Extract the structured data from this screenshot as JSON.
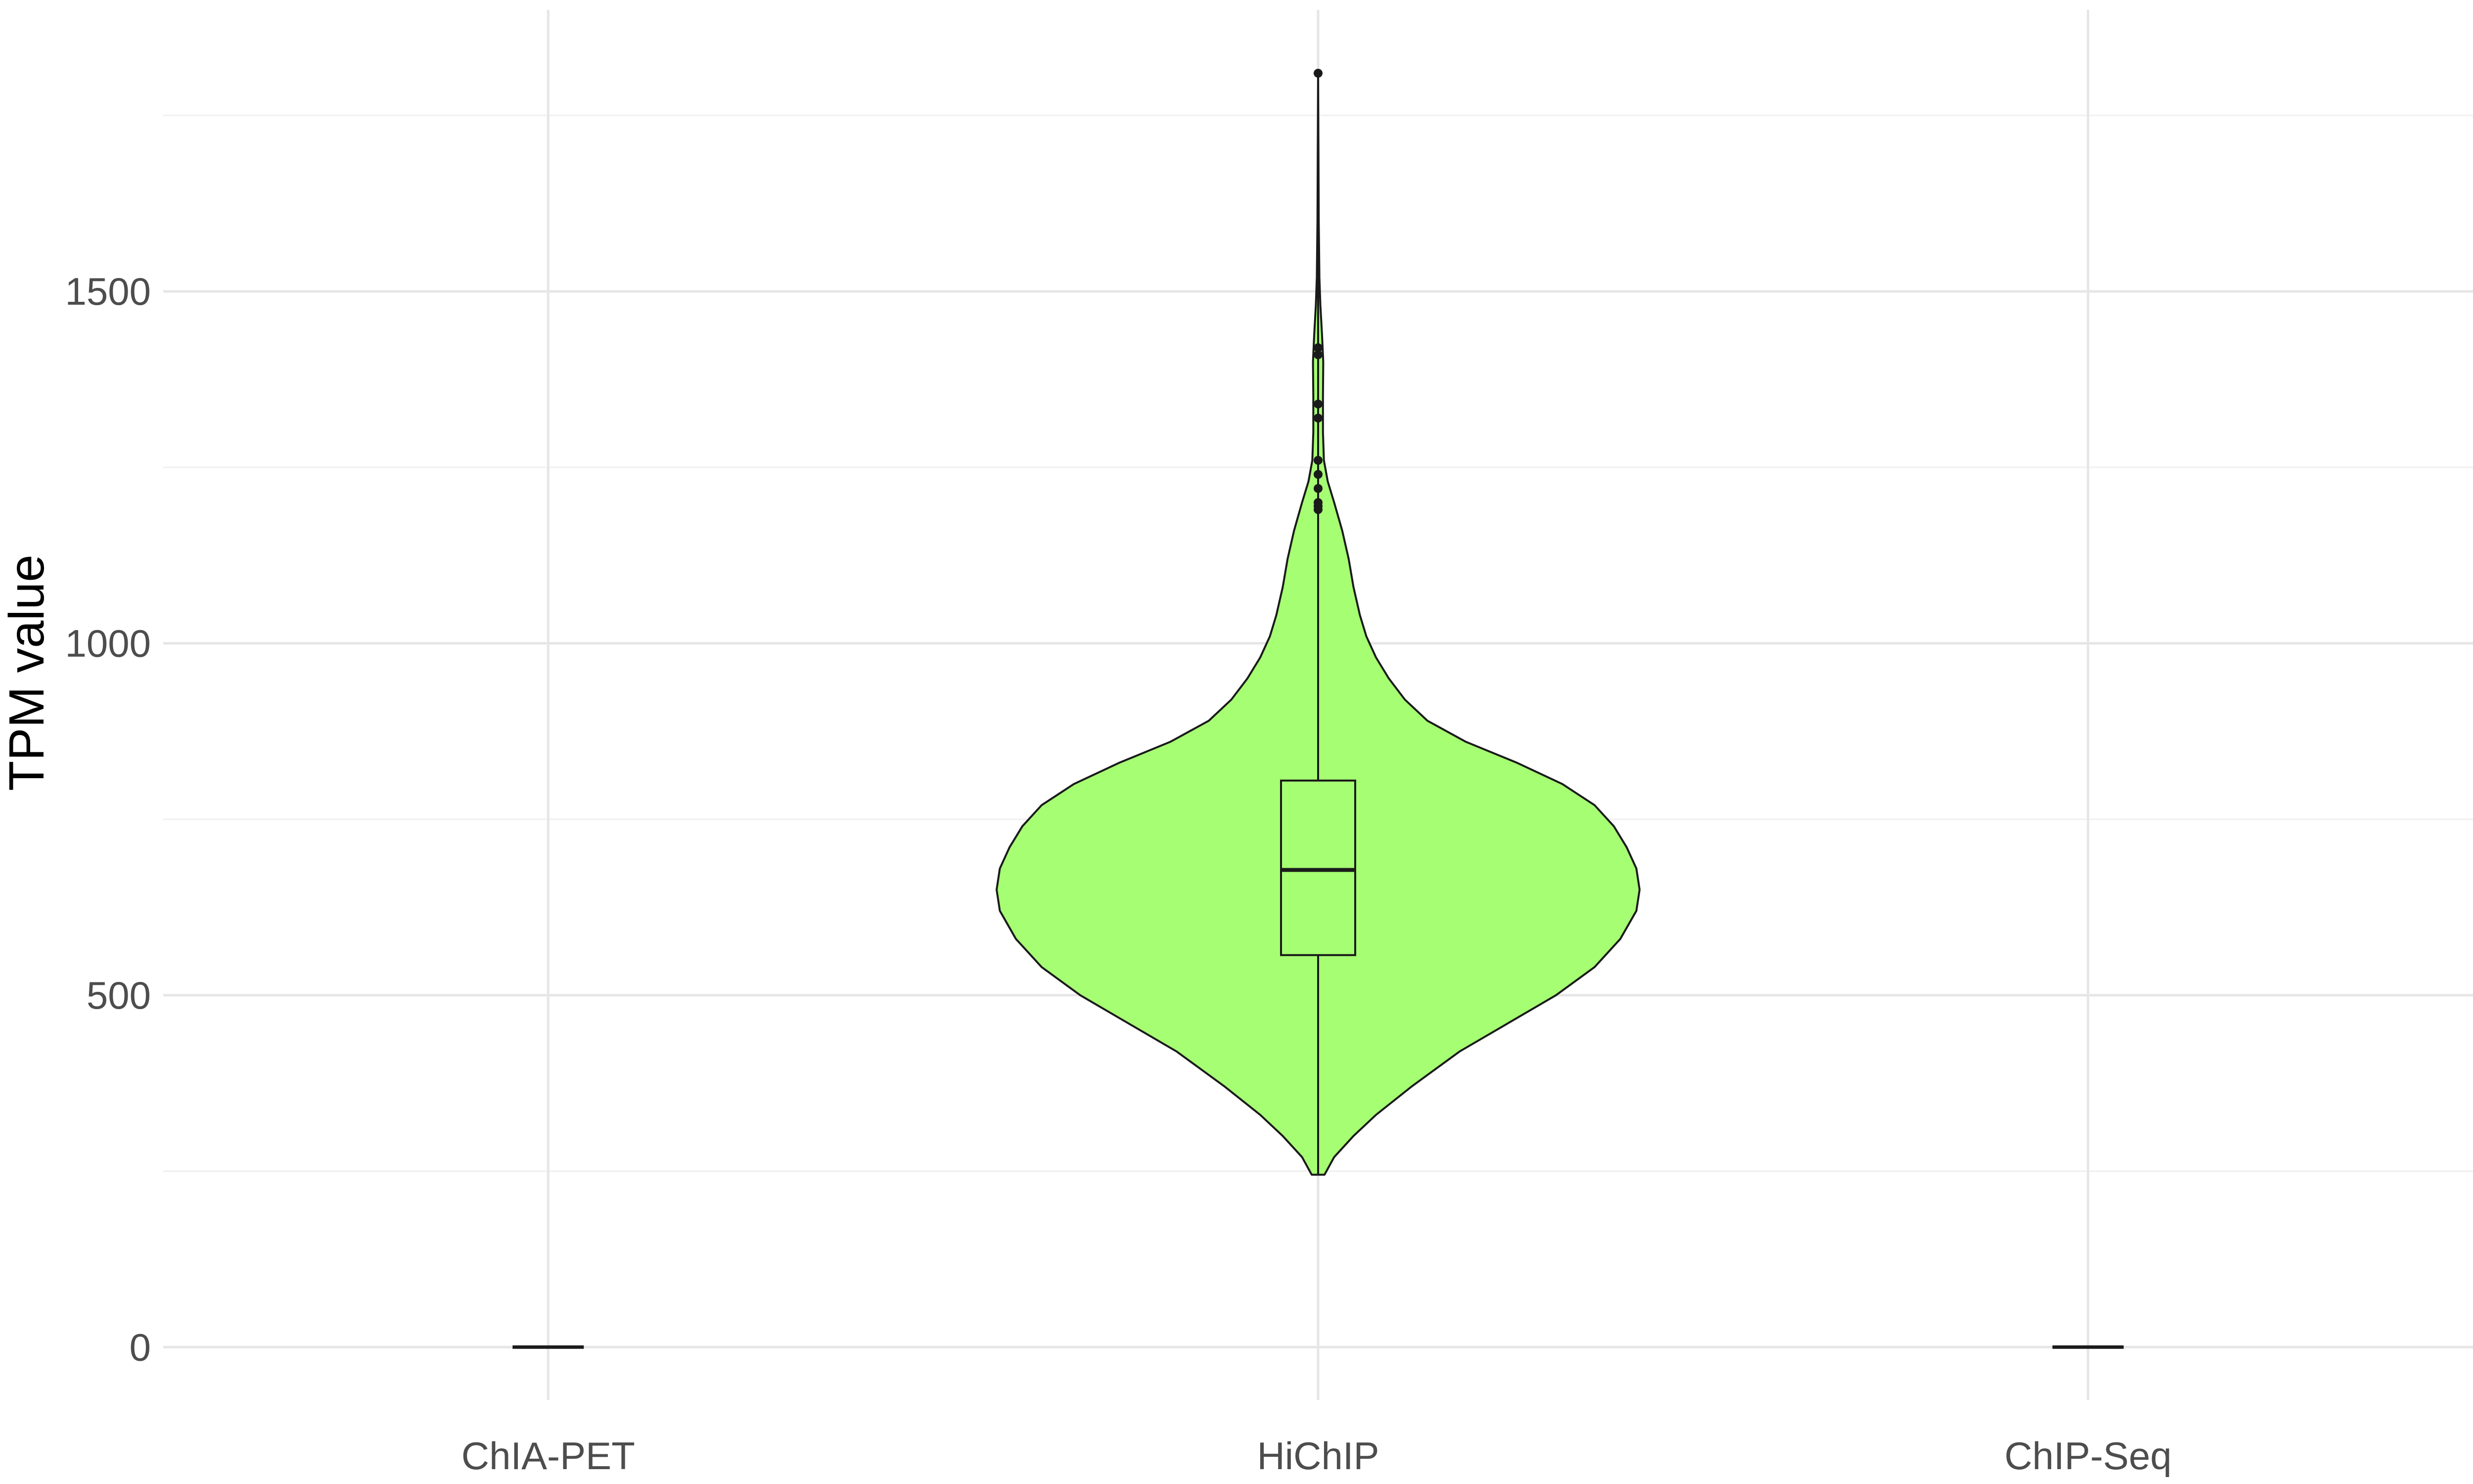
{
  "chart_data": {
    "type": "violin",
    "xlabel": "",
    "ylabel": "TPM value",
    "categories": [
      "ChIA-PET",
      "HiChIP",
      "ChIP-Seq"
    ],
    "ylim": [
      -75,
      1900
    ],
    "y_ticks": [
      0,
      500,
      1000,
      1500
    ],
    "grid": true,
    "fill_color": "#a6ff73",
    "outline_color": "#1a1a1a",
    "groups": [
      {
        "name": "ChIA-PET",
        "constant_value": 0
      },
      {
        "name": "HiChIP",
        "box": {
          "min": 245,
          "q1": 557,
          "median": 678,
          "q3": 805,
          "max": 1180
        },
        "outliers": [
          1190,
          1195,
          1200,
          1220,
          1240,
          1260,
          1320,
          1340,
          1410,
          1420,
          1810
        ],
        "density": [
          {
            "y": 245,
            "width": 0.02
          },
          {
            "y": 270,
            "width": 0.05
          },
          {
            "y": 300,
            "width": 0.11
          },
          {
            "y": 330,
            "width": 0.18
          },
          {
            "y": 370,
            "width": 0.29
          },
          {
            "y": 420,
            "width": 0.44
          },
          {
            "y": 460,
            "width": 0.59
          },
          {
            "y": 500,
            "width": 0.74
          },
          {
            "y": 540,
            "width": 0.86
          },
          {
            "y": 580,
            "width": 0.94
          },
          {
            "y": 620,
            "width": 0.99
          },
          {
            "y": 650,
            "width": 1.0
          },
          {
            "y": 680,
            "width": 0.99
          },
          {
            "y": 710,
            "width": 0.96
          },
          {
            "y": 740,
            "width": 0.92
          },
          {
            "y": 770,
            "width": 0.86
          },
          {
            "y": 800,
            "width": 0.76
          },
          {
            "y": 830,
            "width": 0.62
          },
          {
            "y": 860,
            "width": 0.46
          },
          {
            "y": 890,
            "width": 0.34
          },
          {
            "y": 920,
            "width": 0.27
          },
          {
            "y": 950,
            "width": 0.22
          },
          {
            "y": 980,
            "width": 0.18
          },
          {
            "y": 1010,
            "width": 0.15
          },
          {
            "y": 1040,
            "width": 0.13
          },
          {
            "y": 1080,
            "width": 0.11
          },
          {
            "y": 1120,
            "width": 0.095
          },
          {
            "y": 1160,
            "width": 0.075
          },
          {
            "y": 1200,
            "width": 0.05
          },
          {
            "y": 1230,
            "width": 0.03
          },
          {
            "y": 1260,
            "width": 0.018
          },
          {
            "y": 1300,
            "width": 0.015
          },
          {
            "y": 1350,
            "width": 0.015
          },
          {
            "y": 1400,
            "width": 0.016
          },
          {
            "y": 1440,
            "width": 0.012
          },
          {
            "y": 1480,
            "width": 0.007
          },
          {
            "y": 1520,
            "width": 0.004
          },
          {
            "y": 1600,
            "width": 0.002
          },
          {
            "y": 1700,
            "width": 0.001
          },
          {
            "y": 1810,
            "width": 0.0
          }
        ]
      },
      {
        "name": "ChIP-Seq",
        "constant_value": 0
      }
    ]
  }
}
